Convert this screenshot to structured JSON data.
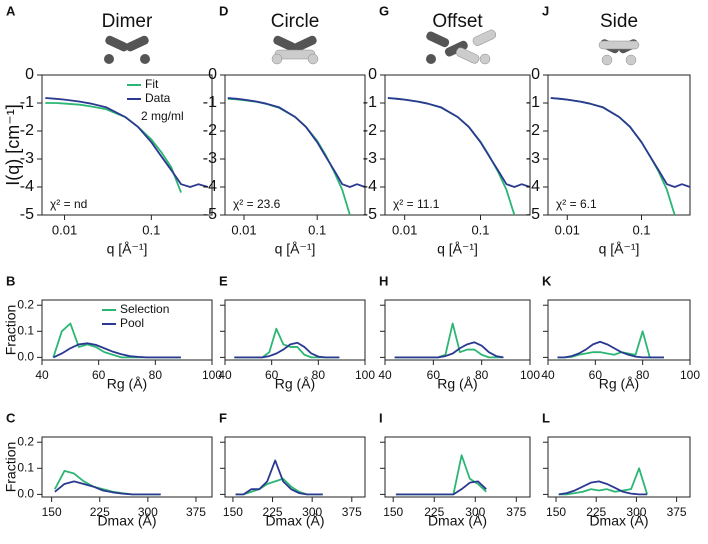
{
  "chart_data": [
    {
      "type": "line",
      "panel_label": "A",
      "title": "Dimer",
      "ylabel": "I(q) [cm⁻¹]",
      "xlabel": "q [Å⁻¹]",
      "xscale": "log",
      "x": [
        0.006,
        0.008,
        0.01,
        0.015,
        0.02,
        0.03,
        0.05,
        0.07,
        0.1,
        0.13,
        0.17,
        0.22,
        0.28,
        0.35,
        0.45
      ],
      "series": [
        {
          "name": "Fit",
          "color": "#2bb673",
          "values": [
            -1.0,
            -1.0,
            -1.02,
            -1.06,
            -1.12,
            -1.22,
            -1.5,
            -1.85,
            -2.3,
            -2.75,
            -3.3,
            -4.2,
            null,
            null,
            null
          ]
        },
        {
          "name": "Data",
          "color": "#2b3990",
          "values": [
            -0.82,
            -0.85,
            -0.88,
            -0.95,
            -1.02,
            -1.15,
            -1.5,
            -1.85,
            -2.4,
            -2.9,
            -3.4,
            -3.9,
            -4.0,
            -3.9,
            -4.0
          ]
        }
      ],
      "legend": "upper right",
      "annotation": "2 mg/ml",
      "fit_quality": "χ² = nd",
      "xlim": [
        0.0055,
        0.5
      ],
      "ylim": [
        -5,
        0
      ],
      "xticks": [
        0.01,
        0.1
      ],
      "yticks": [
        0,
        -1,
        -2,
        -3,
        -4,
        -5
      ]
    },
    {
      "type": "line",
      "panel_label": "B",
      "ylabel": "Fraction",
      "xlabel": "Rg (Å)",
      "x": [
        44,
        47,
        50,
        53,
        56,
        59,
        62,
        65,
        68,
        71,
        74,
        77,
        80,
        83,
        86,
        89
      ],
      "series": [
        {
          "name": "Selection",
          "color": "#2bb673",
          "values": [
            0,
            0.1,
            0.13,
            0.04,
            0.05,
            0.04,
            0.02,
            0.01,
            0,
            0,
            0,
            0,
            0,
            0,
            0,
            0
          ]
        },
        {
          "name": "Pool",
          "color": "#2b3990",
          "values": [
            0,
            0.015,
            0.035,
            0.05,
            0.054,
            0.048,
            0.035,
            0.022,
            0.012,
            0.005,
            0.002,
            0,
            0,
            0,
            0,
            0
          ]
        }
      ],
      "legend": "upper right",
      "xlim": [
        40,
        100
      ],
      "ylim": [
        -0.01,
        0.22
      ],
      "xticks": [
        40,
        60,
        80,
        100
      ],
      "yticks": [
        {
          "value": 0,
          "label": "0.0"
        },
        0.1,
        0.2
      ]
    },
    {
      "type": "line",
      "panel_label": "C",
      "ylabel": "Fraction",
      "xlabel": "Dmax (Å)",
      "x": [
        155,
        170,
        185,
        200,
        215,
        230,
        245,
        260,
        275,
        290,
        305,
        320
      ],
      "series": [
        {
          "name": "Selection",
          "color": "#2bb673",
          "values": [
            0.02,
            0.09,
            0.08,
            0.05,
            0.03,
            0.02,
            0.01,
            0.005,
            0,
            0,
            0,
            0
          ]
        },
        {
          "name": "Pool",
          "color": "#2b3990",
          "values": [
            0.01,
            0.04,
            0.05,
            0.04,
            0.03,
            0.015,
            0.008,
            0.003,
            0,
            0,
            0,
            0
          ]
        }
      ],
      "xlim": [
        135,
        400
      ],
      "ylim": [
        -0.01,
        0.22
      ],
      "xticks": [
        150,
        225,
        300,
        375
      ],
      "yticks": [
        {
          "value": 0,
          "label": "0.0"
        },
        0.1,
        0.2
      ]
    },
    {
      "type": "line",
      "panel_label": "D",
      "title": "Circle",
      "xlabel": "q [Å⁻¹]",
      "xscale": "log",
      "x": [
        0.006,
        0.008,
        0.01,
        0.015,
        0.02,
        0.03,
        0.05,
        0.07,
        0.1,
        0.13,
        0.17,
        0.22,
        0.28,
        0.35,
        0.45
      ],
      "series": [
        {
          "name": "Fit",
          "color": "#2bb673",
          "values": [
            -0.85,
            -0.87,
            -0.9,
            -0.96,
            -1.03,
            -1.17,
            -1.5,
            -1.85,
            -2.35,
            -2.85,
            -3.45,
            -4.1,
            -5,
            null,
            null
          ]
        },
        {
          "name": "Data",
          "color": "#2b3990",
          "values": [
            -0.82,
            -0.85,
            -0.88,
            -0.95,
            -1.02,
            -1.15,
            -1.5,
            -1.85,
            -2.4,
            -2.9,
            -3.4,
            -3.9,
            -4.0,
            -3.9,
            -4.0
          ]
        }
      ],
      "fit_quality": "χ² = 23.6",
      "xlim": [
        0.0055,
        0.45
      ],
      "ylim": [
        -5,
        0
      ],
      "xticks": [
        0.01,
        0.1
      ],
      "yticks": [
        0,
        -1,
        -2,
        -3,
        -4,
        -5
      ]
    },
    {
      "type": "line",
      "panel_label": "E",
      "xlabel": "Rg (Å)",
      "ytick_labels": false,
      "x": [
        44,
        47,
        50,
        53,
        56,
        59,
        62,
        65,
        68,
        71,
        74,
        77,
        80,
        83,
        86,
        89
      ],
      "series": [
        {
          "name": "Selection",
          "color": "#2bb673",
          "values": [
            0,
            0,
            0,
            0,
            0,
            0.02,
            0.11,
            0.05,
            0.04,
            0.04,
            0.01,
            0,
            0,
            0,
            0,
            0
          ]
        },
        {
          "name": "Pool",
          "color": "#2b3990",
          "values": [
            0,
            0,
            0,
            0,
            0,
            0.005,
            0.015,
            0.03,
            0.05,
            0.056,
            0.04,
            0.015,
            0.003,
            0,
            0,
            0
          ]
        }
      ],
      "xlim": [
        40,
        100
      ],
      "ylim": [
        -0.01,
        0.22
      ],
      "xticks": [
        40,
        60,
        80,
        100
      ],
      "yticks": [
        0,
        0.1,
        0.2
      ]
    },
    {
      "type": "line",
      "panel_label": "F",
      "xlabel": "Dmax (Å)",
      "ytick_labels": false,
      "x": [
        155,
        170,
        185,
        200,
        215,
        230,
        245,
        260,
        275,
        290,
        305,
        320
      ],
      "series": [
        {
          "name": "Selection",
          "color": "#2bb673",
          "values": [
            0,
            0,
            0.01,
            0.02,
            0.04,
            0.05,
            0.06,
            0.03,
            0.01,
            0,
            0,
            0
          ]
        },
        {
          "name": "Pool",
          "color": "#2b3990",
          "values": [
            0,
            0,
            0.02,
            0.02,
            0.05,
            0.13,
            0.05,
            0.02,
            0.005,
            0,
            0,
            0
          ]
        }
      ],
      "xlim": [
        135,
        400
      ],
      "ylim": [
        -0.01,
        0.22
      ],
      "xticks": [
        150,
        225,
        300,
        375
      ],
      "yticks": [
        0,
        0.1,
        0.2
      ]
    },
    {
      "type": "line",
      "panel_label": "G",
      "title": "Offset",
      "xlabel": "q [Å⁻¹]",
      "xscale": "log",
      "x": [
        0.006,
        0.008,
        0.01,
        0.015,
        0.02,
        0.03,
        0.05,
        0.07,
        0.1,
        0.13,
        0.17,
        0.22,
        0.28,
        0.35,
        0.45
      ],
      "series": [
        {
          "name": "Fit",
          "color": "#2bb673",
          "values": [
            -0.82,
            -0.85,
            -0.88,
            -0.95,
            -1.02,
            -1.16,
            -1.5,
            -1.85,
            -2.38,
            -2.88,
            -3.45,
            -4.1,
            -5,
            null,
            null
          ]
        },
        {
          "name": "Data",
          "color": "#2b3990",
          "values": [
            -0.82,
            -0.85,
            -0.88,
            -0.95,
            -1.02,
            -1.15,
            -1.5,
            -1.85,
            -2.4,
            -2.9,
            -3.4,
            -3.9,
            -4.0,
            -3.9,
            -4.0
          ]
        }
      ],
      "fit_quality": "χ² = 11.1",
      "xlim": [
        0.0055,
        0.45
      ],
      "ylim": [
        -5,
        0
      ],
      "xticks": [
        0.01,
        0.1
      ],
      "yticks": [
        0,
        -1,
        -2,
        -3,
        -4,
        -5
      ]
    },
    {
      "type": "line",
      "panel_label": "H",
      "xlabel": "Rg (Å)",
      "ytick_labels": false,
      "x": [
        44,
        47,
        50,
        53,
        56,
        59,
        62,
        65,
        68,
        71,
        74,
        77,
        80,
        83,
        86,
        89
      ],
      "series": [
        {
          "name": "Selection",
          "color": "#2bb673",
          "values": [
            0,
            0,
            0,
            0,
            0,
            0,
            0,
            0.01,
            0.13,
            0.02,
            0.03,
            0.03,
            0.01,
            0,
            0,
            0
          ]
        },
        {
          "name": "Pool",
          "color": "#2b3990",
          "values": [
            0,
            0,
            0,
            0,
            0,
            0,
            0,
            0.005,
            0.015,
            0.035,
            0.05,
            0.058,
            0.045,
            0.02,
            0.005,
            0
          ]
        }
      ],
      "xlim": [
        40,
        100
      ],
      "ylim": [
        -0.01,
        0.22
      ],
      "xticks": [
        40,
        60,
        80,
        100
      ],
      "yticks": [
        0,
        0.1,
        0.2
      ]
    },
    {
      "type": "line",
      "panel_label": "I",
      "xlabel": "Dmax (Å)",
      "ytick_labels": false,
      "x": [
        155,
        170,
        185,
        200,
        215,
        230,
        245,
        260,
        275,
        290,
        305,
        320
      ],
      "series": [
        {
          "name": "Selection",
          "color": "#2bb673",
          "values": [
            0,
            0,
            0,
            0,
            0,
            0,
            0,
            0,
            0.15,
            0.06,
            0.04,
            0.01
          ]
        },
        {
          "name": "Pool",
          "color": "#2b3990",
          "values": [
            0,
            0,
            0,
            0,
            0,
            0,
            0,
            0,
            0.02,
            0.045,
            0.05,
            0.02
          ]
        }
      ],
      "xlim": [
        135,
        400
      ],
      "ylim": [
        -0.01,
        0.22
      ],
      "xticks": [
        150,
        225,
        300,
        375
      ],
      "yticks": [
        0,
        0.1,
        0.2
      ]
    },
    {
      "type": "line",
      "panel_label": "J",
      "title": "Side",
      "xlabel": "q [Å⁻¹]",
      "xscale": "log",
      "x": [
        0.006,
        0.008,
        0.01,
        0.015,
        0.02,
        0.03,
        0.05,
        0.07,
        0.1,
        0.13,
        0.17,
        0.22,
        0.28,
        0.35,
        0.45
      ],
      "series": [
        {
          "name": "Fit",
          "color": "#2bb673",
          "values": [
            -0.82,
            -0.85,
            -0.88,
            -0.95,
            -1.02,
            -1.15,
            -1.5,
            -1.85,
            -2.4,
            -2.9,
            -3.45,
            -4.1,
            -5,
            null,
            null
          ]
        },
        {
          "name": "Data",
          "color": "#2b3990",
          "values": [
            -0.82,
            -0.85,
            -0.88,
            -0.95,
            -1.02,
            -1.15,
            -1.5,
            -1.85,
            -2.4,
            -2.9,
            -3.4,
            -3.9,
            -4.0,
            -3.9,
            -4.0
          ]
        }
      ],
      "fit_quality": "χ² = 6.1",
      "xlim": [
        0.0055,
        0.45
      ],
      "ylim": [
        -5,
        0
      ],
      "xticks": [
        0.01,
        0.1
      ],
      "yticks": [
        0,
        -1,
        -2,
        -3,
        -4,
        -5
      ]
    },
    {
      "type": "line",
      "panel_label": "K",
      "xlabel": "Rg (Å)",
      "ytick_labels": false,
      "x": [
        44,
        47,
        50,
        53,
        56,
        59,
        62,
        65,
        68,
        71,
        74,
        77,
        80,
        83,
        86,
        89
      ],
      "series": [
        {
          "name": "Selection",
          "color": "#2bb673",
          "values": [
            0,
            0,
            0.002,
            0.01,
            0.015,
            0.02,
            0.02,
            0.015,
            0.01,
            0.02,
            0.015,
            0.01,
            0.1,
            0,
            0,
            0
          ]
        },
        {
          "name": "Pool",
          "color": "#2b3990",
          "values": [
            0,
            0,
            0.005,
            0.015,
            0.03,
            0.05,
            0.06,
            0.05,
            0.035,
            0.02,
            0.01,
            0.003,
            0,
            0,
            0,
            0
          ]
        }
      ],
      "xlim": [
        40,
        100
      ],
      "ylim": [
        -0.01,
        0.22
      ],
      "xticks": [
        40,
        60,
        80,
        100
      ],
      "yticks": [
        0,
        0.1,
        0.2
      ]
    },
    {
      "type": "line",
      "panel_label": "L",
      "xlabel": "Dmax (Å)",
      "ytick_labels": false,
      "x": [
        155,
        170,
        185,
        200,
        215,
        230,
        245,
        260,
        275,
        290,
        305,
        320
      ],
      "series": [
        {
          "name": "Selection",
          "color": "#2bb673",
          "values": [
            0,
            0,
            0.005,
            0.01,
            0.02,
            0.015,
            0.02,
            0.01,
            0.015,
            0.02,
            0.1,
            0
          ]
        },
        {
          "name": "Pool",
          "color": "#2b3990",
          "values": [
            0,
            0.005,
            0.015,
            0.03,
            0.045,
            0.05,
            0.04,
            0.025,
            0.01,
            0.003,
            0,
            0
          ]
        }
      ],
      "xlim": [
        135,
        400
      ],
      "ylim": [
        -0.01,
        0.22
      ],
      "xticks": [
        150,
        225,
        300,
        375
      ],
      "yticks": [
        0,
        0.1,
        0.2
      ]
    }
  ]
}
